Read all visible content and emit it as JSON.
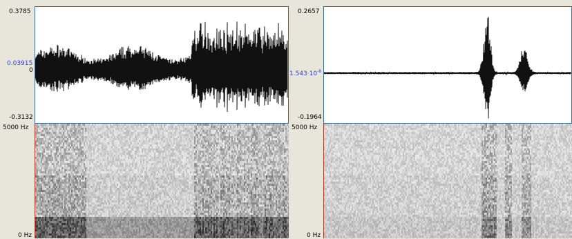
{
  "left_view": {
    "waveform": {
      "y_max": "0.3785",
      "y_cursor": "0.03915",
      "y_zero": "0",
      "y_min": "-0.3132"
    },
    "spectrogram": {
      "freq_max": "5000 Hz",
      "freq_min": "0 Hz"
    }
  },
  "right_view": {
    "waveform": {
      "y_max": "0.2657",
      "y_cursor": "1.543·10",
      "y_cursor_exp": "-8",
      "y_min": "-0.1964"
    },
    "spectrogram": {
      "freq_max": "5000 Hz",
      "freq_min": "0 Hz"
    }
  },
  "colors": {
    "frame": "#3f6b8c",
    "cursor_value": "#2a3fd8",
    "spectrogram_edge": "#b53a2e"
  }
}
